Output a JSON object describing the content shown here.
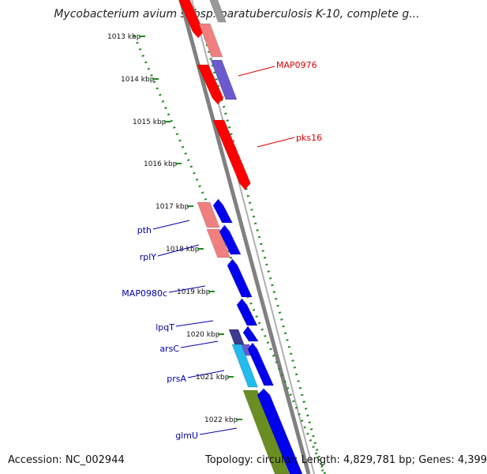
{
  "title": "Mycobacterium avium subsp. paratuberculosis K-10, complete g...",
  "footer": {
    "accession": "Accession: NC_002944",
    "summary": "Topology: circular; Length: 4,829,781 bp; Genes: 4,399"
  },
  "colors": {
    "red": "#ff0000",
    "pink": "#f08080",
    "blue": "#0000ee",
    "slate": "#6a5acd",
    "navy": "#3b3b8f",
    "cyan": "#22bbee",
    "olive": "#6b8e23",
    "ruler": "#228b22",
    "backbone": "#808080",
    "label_red": "#dd0000",
    "label_blue": "#0000aa"
  },
  "ticks": [
    {
      "label": "1013 kbp"
    },
    {
      "label": "1014 kbp"
    },
    {
      "label": "1015 kbp"
    },
    {
      "label": "1016 kbp"
    },
    {
      "label": "1017 kbp"
    },
    {
      "label": "1018 kbp"
    },
    {
      "label": "1019 kbp"
    },
    {
      "label": "1020 kbp"
    },
    {
      "label": "1021 kbp"
    },
    {
      "label": "1022 kbp"
    }
  ],
  "gene_labels": [
    {
      "name": "MAP0976",
      "color": "red"
    },
    {
      "name": "pks16",
      "color": "red"
    },
    {
      "name": "pth",
      "color": "blue"
    },
    {
      "name": "rplY",
      "color": "blue"
    },
    {
      "name": "MAP0980c",
      "color": "blue"
    },
    {
      "name": "lpqT",
      "color": "blue"
    },
    {
      "name": "arsC",
      "color": "blue"
    },
    {
      "name": "prsA",
      "color": "blue"
    },
    {
      "name": "glmU",
      "color": "blue"
    }
  ]
}
